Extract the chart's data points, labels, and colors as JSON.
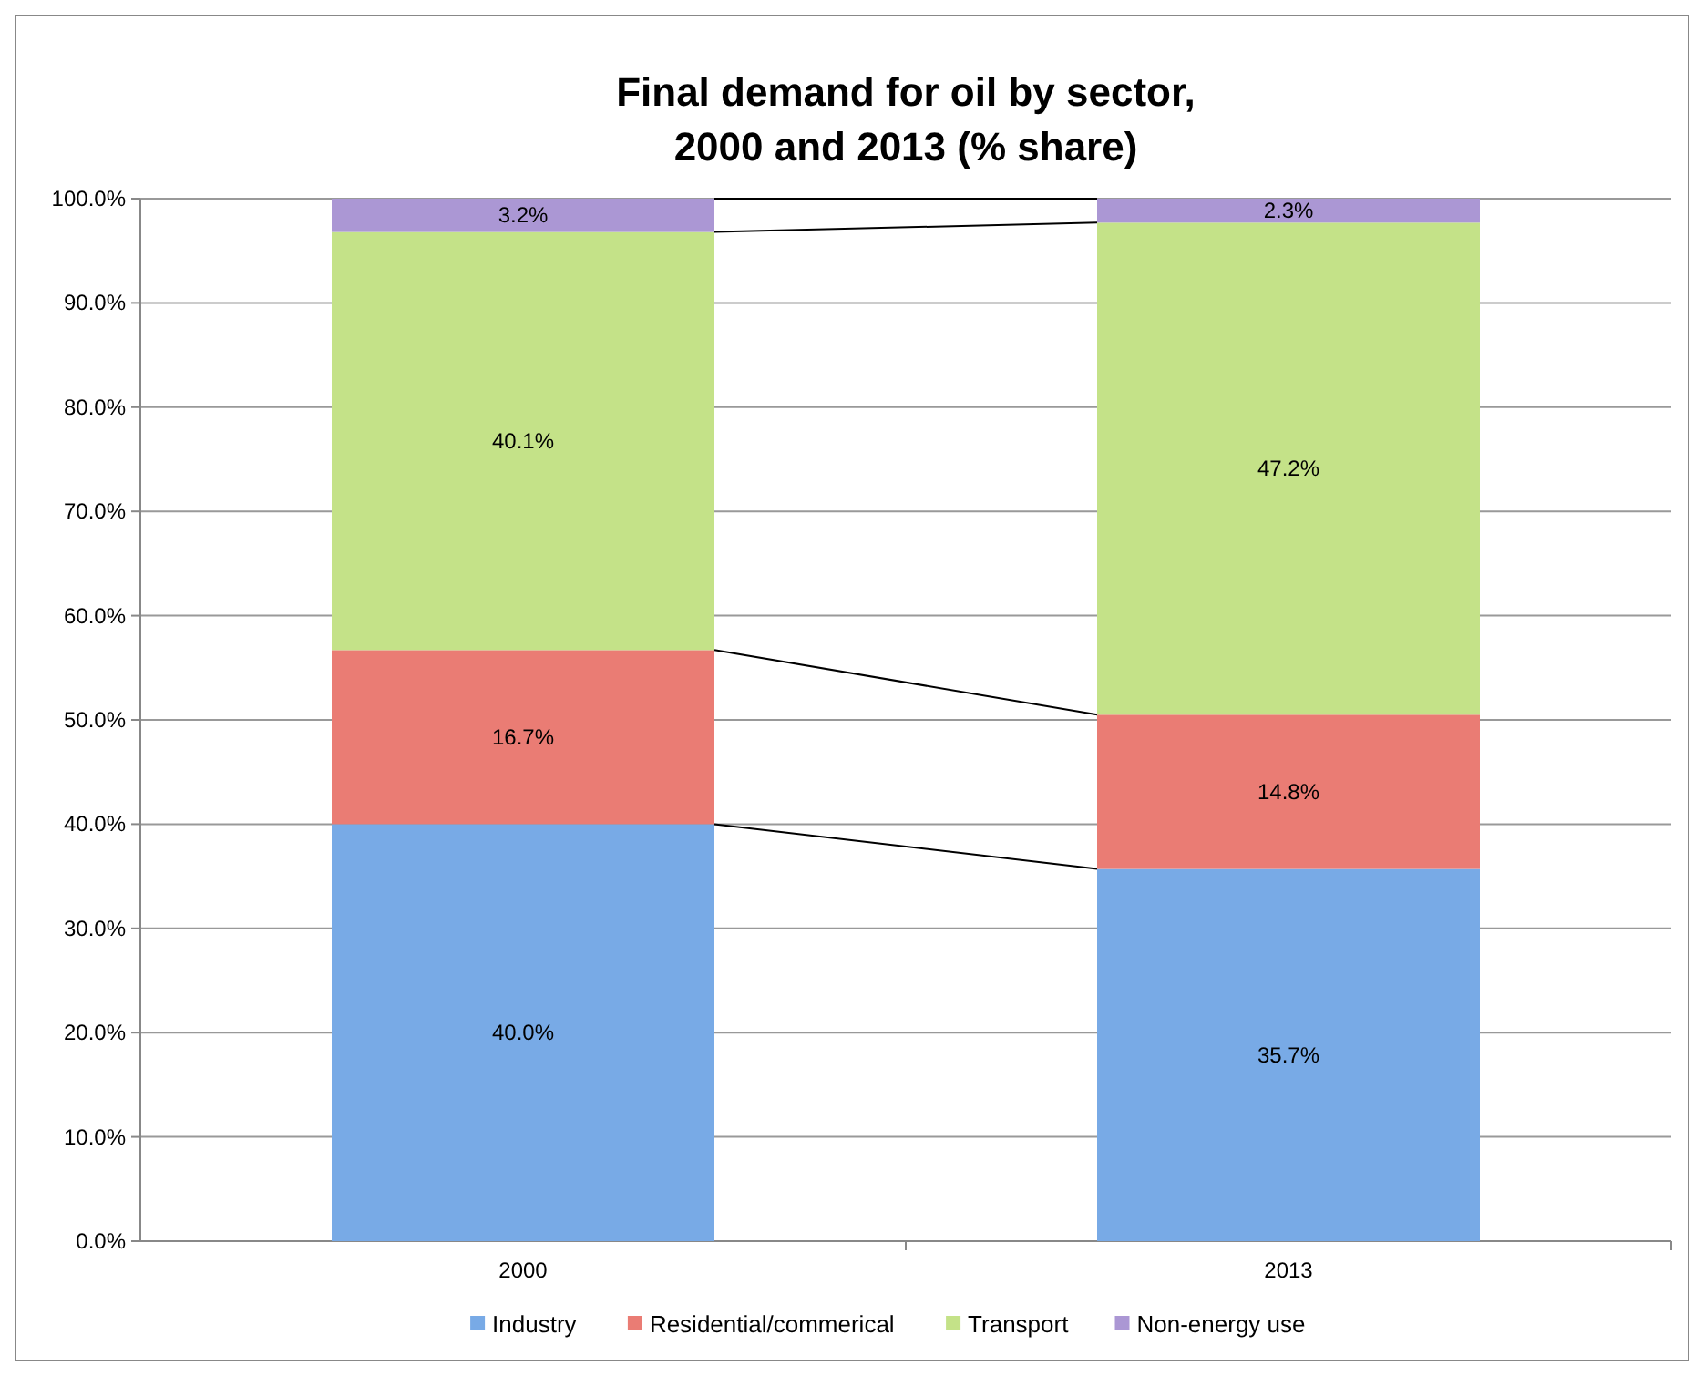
{
  "chart_data": {
    "type": "bar",
    "stacked": true,
    "title": "Final demand for oil by sector,\n2000 and 2013 (% share)",
    "categories": [
      "2000",
      "2013"
    ],
    "series": [
      {
        "name": "Industry",
        "color": "#78aae6",
        "values": [
          40.0,
          35.7
        ],
        "value_labels": [
          "40.0%",
          "35.7%"
        ]
      },
      {
        "name": "Residential/commerical",
        "color": "#ea7c74",
        "values": [
          16.7,
          14.8
        ],
        "value_labels": [
          "16.7%",
          "14.8%"
        ]
      },
      {
        "name": "Transport",
        "color": "#c4e288",
        "values": [
          40.1,
          47.2
        ],
        "value_labels": [
          "40.1%",
          "47.2%"
        ]
      },
      {
        "name": "Non-energy use",
        "color": "#ab97d4",
        "values": [
          3.2,
          2.3
        ],
        "value_labels": [
          "3.2%",
          "2.3%"
        ]
      }
    ],
    "ylim": [
      0,
      100
    ],
    "yticks": [
      {
        "value": 0,
        "label": "0.0%"
      },
      {
        "value": 10,
        "label": "10.0%"
      },
      {
        "value": 20,
        "label": "20.0%"
      },
      {
        "value": 30,
        "label": "30.0%"
      },
      {
        "value": 40,
        "label": "40.0%"
      },
      {
        "value": 50,
        "label": "50.0%"
      },
      {
        "value": 60,
        "label": "60.0%"
      },
      {
        "value": 70,
        "label": "70.0%"
      },
      {
        "value": 80,
        "label": "80.0%"
      },
      {
        "value": 90,
        "label": "90.0%"
      },
      {
        "value": 100,
        "label": "100.0%"
      }
    ],
    "grid": "y",
    "legend": "bottom"
  }
}
